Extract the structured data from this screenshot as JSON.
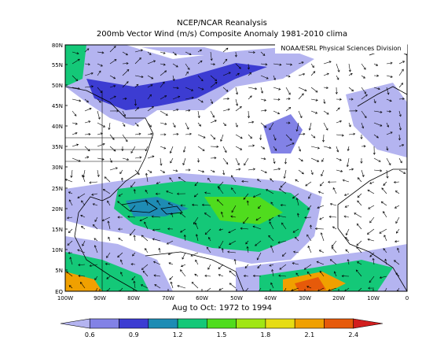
{
  "title_line1": "NCEP/NCAR Reanalysis",
  "title_line2": "200mb Vector Wind (m/s) Composite Anomaly 1981-2010 clima",
  "credit": "NOAA/ESRL Physical Sciences Division",
  "subtitle": "Aug to Oct: 1972 to 1994",
  "lat_labels": [
    "80N",
    "55N",
    "50N",
    "45N",
    "40N",
    "35N",
    "30N",
    "25N",
    "20N",
    "15N",
    "10N",
    "5N",
    "EQ"
  ],
  "lon_labels": [
    "100W",
    "90W",
    "80W",
    "70W",
    "60W",
    "50W",
    "40W",
    "30W",
    "20W",
    "10W",
    "0"
  ],
  "colorbar": {
    "labels": [
      "0.6",
      "0.9",
      "1.2",
      "1.5",
      "1.8",
      "2.1",
      "2.4"
    ],
    "colors": [
      "#b4b4f0",
      "#8282e6",
      "#3c3cd2",
      "#1e8cb4",
      "#14c878",
      "#50dc1e",
      "#a0e614",
      "#e6dc14",
      "#f0a000",
      "#e65a0a",
      "#d21e1e"
    ]
  }
}
